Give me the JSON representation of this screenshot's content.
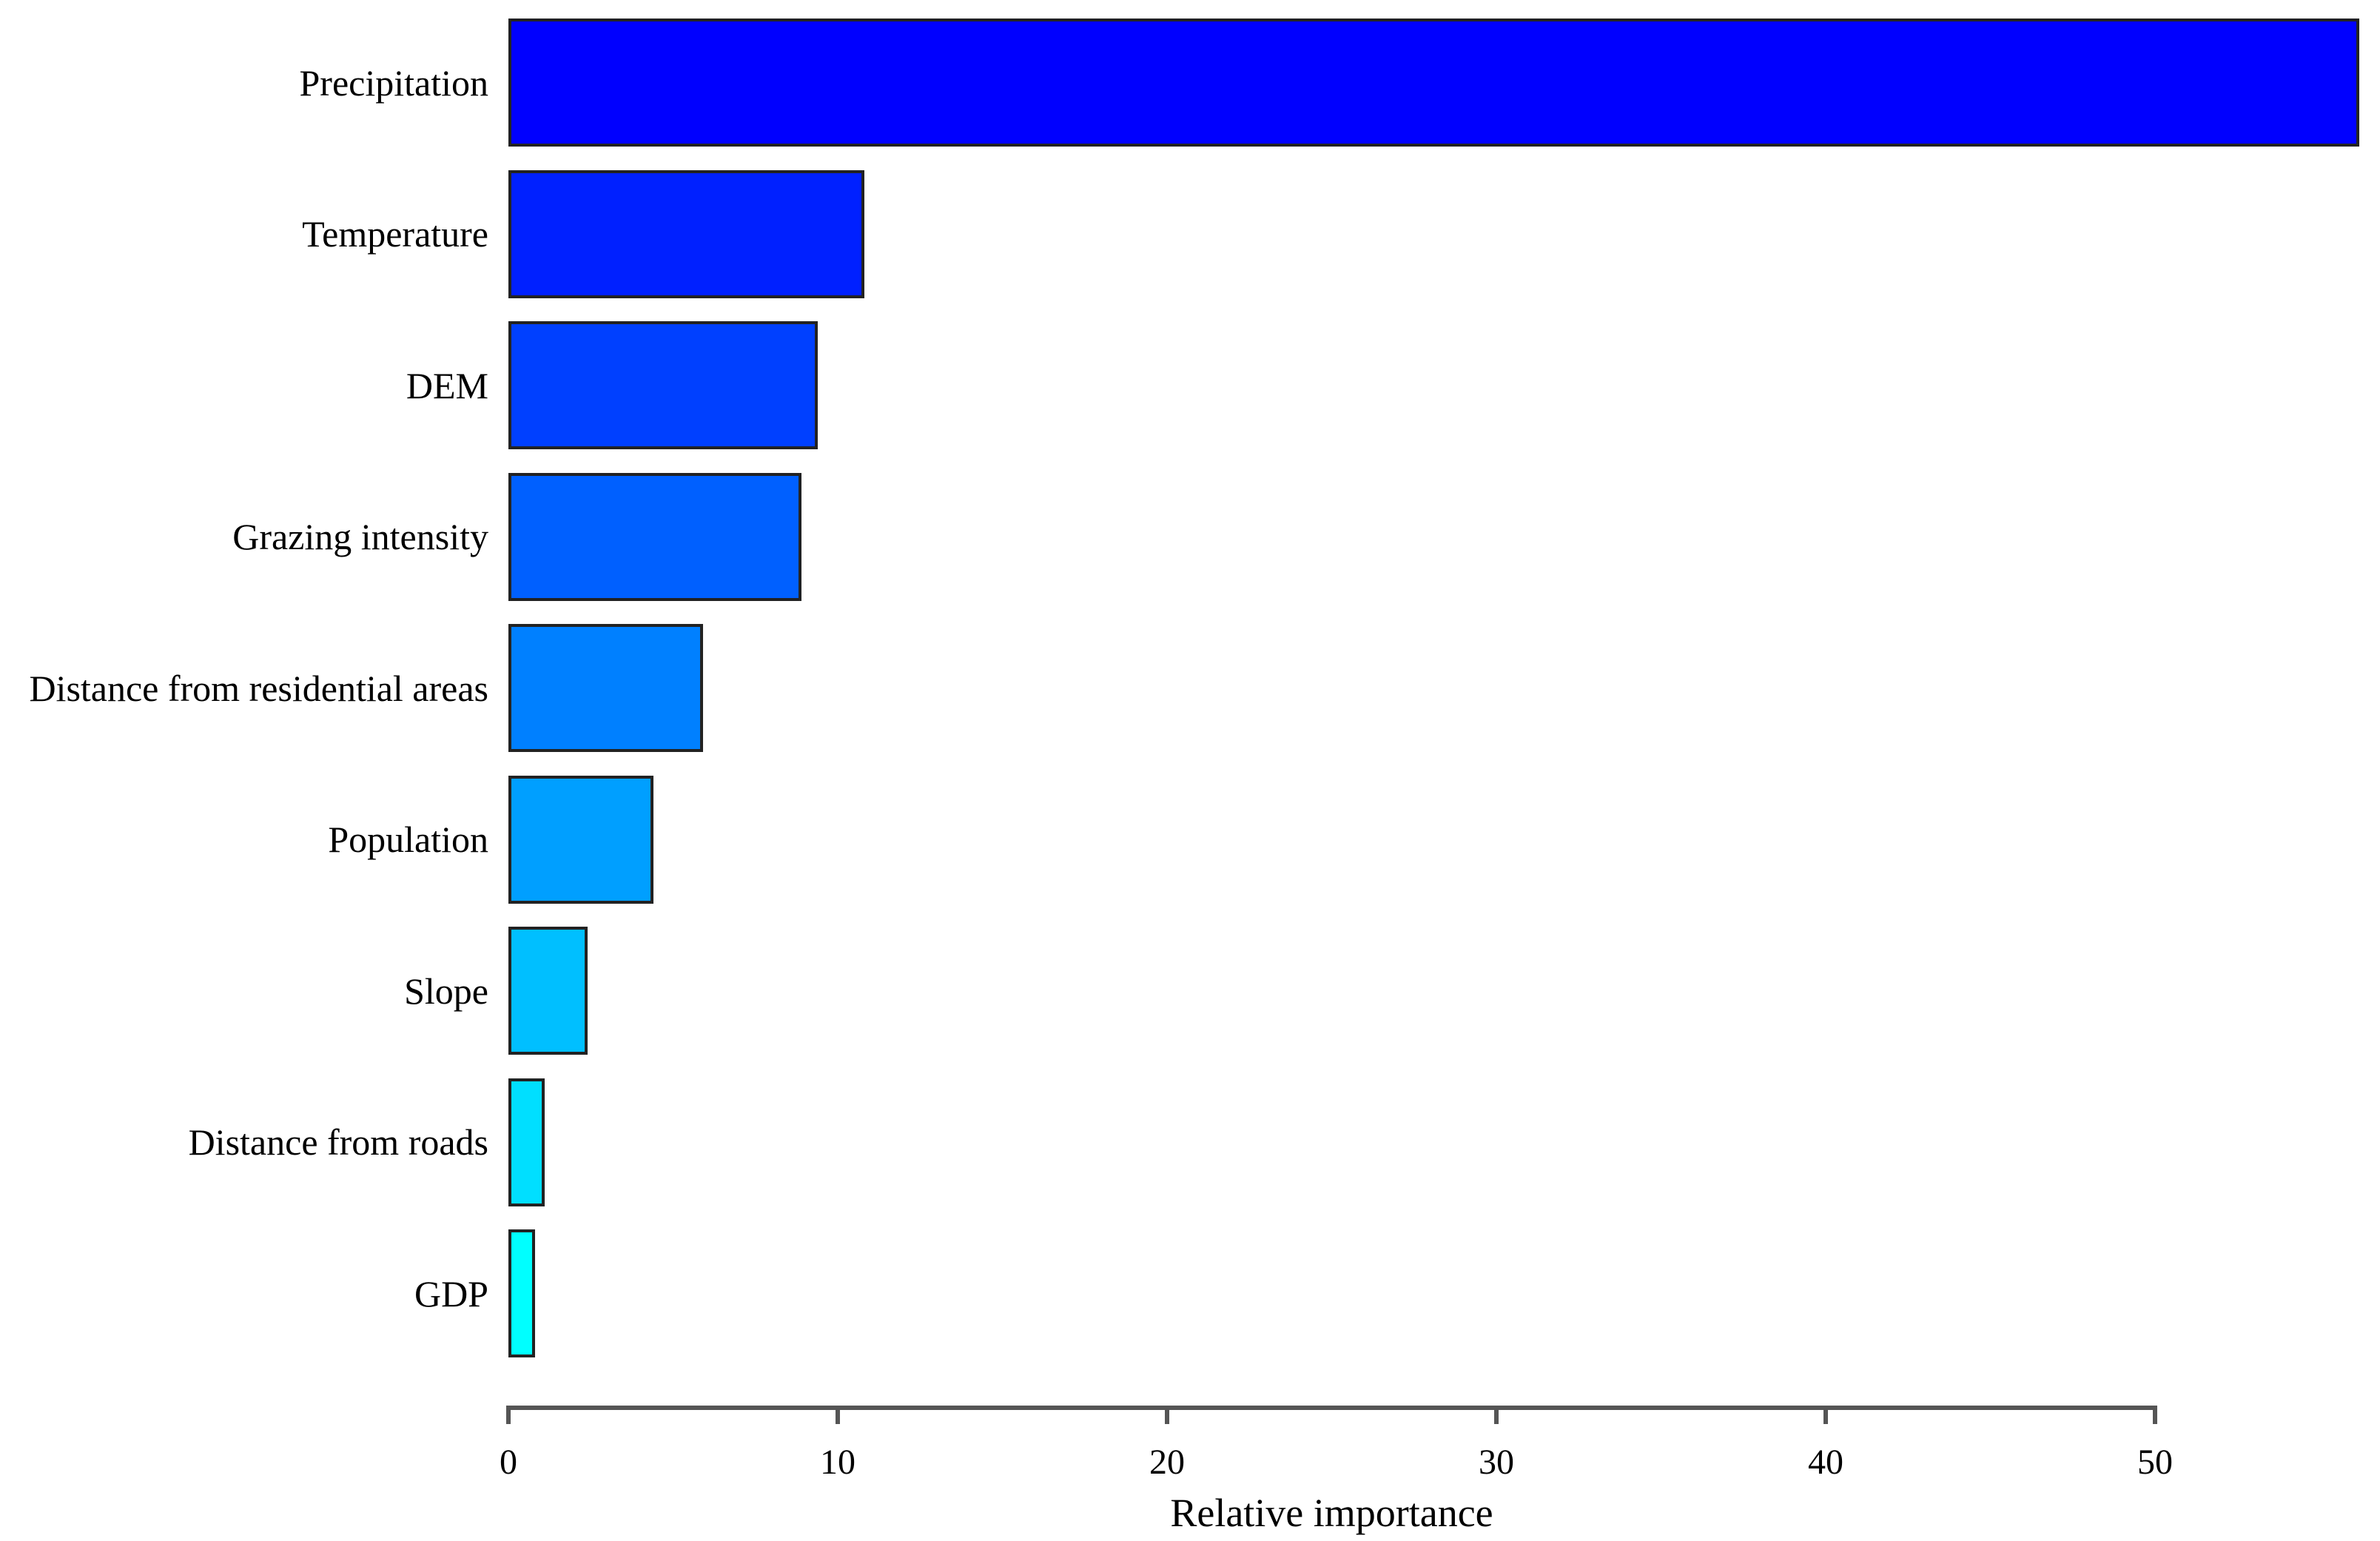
{
  "chart_data": {
    "type": "bar",
    "orientation": "horizontal",
    "title": "",
    "xlabel": "Relative importance",
    "ylabel": "",
    "categories": [
      "Precipitation",
      "Temperature",
      "DEM",
      "Grazing intensity",
      "Distance from residential areas",
      "Population",
      "Slope",
      "Distance from roads",
      "GDP"
    ],
    "values": [
      56.2,
      10.8,
      9.4,
      8.9,
      5.9,
      4.4,
      2.4,
      1.1,
      0.8
    ],
    "bar_colors": [
      "#0000FF",
      "#0020FF",
      "#0040FF",
      "#0060FF",
      "#0080FF",
      "#009FFF",
      "#00BFFF",
      "#00DFFF",
      "#00FFFF"
    ],
    "xlim": [
      0,
      50
    ],
    "x_ticks": [
      0,
      10,
      20,
      30,
      40,
      50
    ],
    "grid": false,
    "legend": "none",
    "bar_border_color": "#222222",
    "axis_color": "#555555",
    "text_color": "#000000",
    "background_color": "#FFFFFF"
  }
}
